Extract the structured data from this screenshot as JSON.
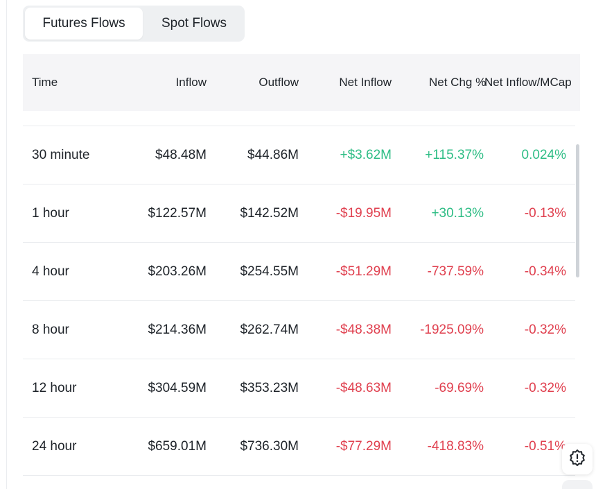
{
  "tabs": [
    {
      "label": "Futures Flows",
      "active": true
    },
    {
      "label": "Spot Flows",
      "active": false
    }
  ],
  "table": {
    "headers": [
      "Time",
      "Inflow",
      "Outflow",
      "Net Inflow",
      "Net Chg %",
      "Net Inflow/MCap"
    ],
    "rows": [
      {
        "time": "30 minute",
        "inflow": "$48.48M",
        "outflow": "$44.86M",
        "net_inflow": "+$3.62M",
        "net_chg": "+115.37%",
        "net_mcap": "0.024%"
      },
      {
        "time": "1 hour",
        "inflow": "$122.57M",
        "outflow": "$142.52M",
        "net_inflow": "-$19.95M",
        "net_chg": "+30.13%",
        "net_mcap": "-0.13%"
      },
      {
        "time": "4 hour",
        "inflow": "$203.26M",
        "outflow": "$254.55M",
        "net_inflow": "-$51.29M",
        "net_chg": "-737.59%",
        "net_mcap": "-0.34%"
      },
      {
        "time": "8 hour",
        "inflow": "$214.36M",
        "outflow": "$262.74M",
        "net_inflow": "-$48.38M",
        "net_chg": "-1925.09%",
        "net_mcap": "-0.32%"
      },
      {
        "time": "12 hour",
        "inflow": "$304.59M",
        "outflow": "$353.23M",
        "net_inflow": "-$48.63M",
        "net_chg": "-69.69%",
        "net_mcap": "-0.32%"
      },
      {
        "time": "24 hour",
        "inflow": "$659.01M",
        "outflow": "$736.30M",
        "net_inflow": "-$77.29M",
        "net_chg": "-418.83%",
        "net_mcap": "-0.51%"
      }
    ]
  },
  "colors": {
    "positive": "#2ebd85",
    "negative": "#e0404f",
    "header_bg": "#f5f5f7",
    "tab_bg": "#eef0f2"
  },
  "icons": {
    "alert": "alert-badge-icon"
  }
}
